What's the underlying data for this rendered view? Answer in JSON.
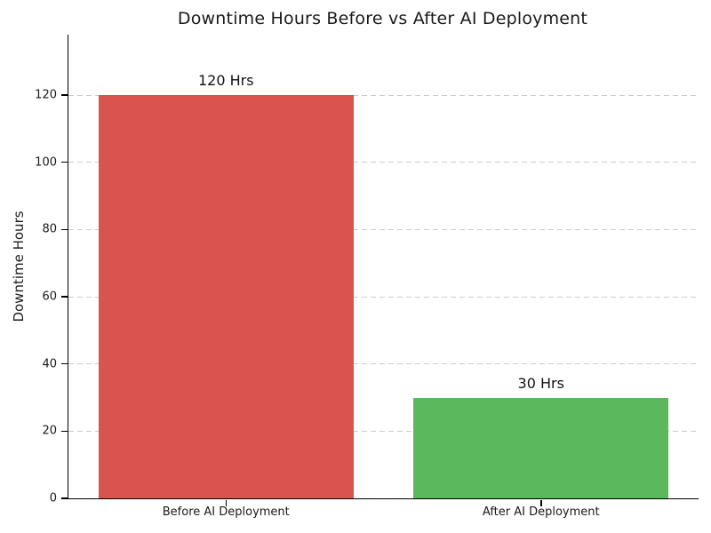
{
  "chart_data": {
    "type": "bar",
    "title": "Downtime Hours Before vs After AI Deployment",
    "xlabel": "",
    "ylabel": "Downtime Hours",
    "categories": [
      "Before AI Deployment",
      "After AI Deployment"
    ],
    "values": [
      120,
      30
    ],
    "value_labels": [
      "120 Hrs",
      "30 Hrs"
    ],
    "bar_colors": [
      "#d9534f",
      "#5cb85c"
    ],
    "ylim": [
      0,
      138
    ],
    "yticks": [
      0,
      20,
      40,
      60,
      80,
      100,
      120
    ],
    "grid": "horizontal-dashed",
    "legend": "none"
  },
  "colors": {
    "background": "#ffffff",
    "grid": "#cccccc",
    "axis": "#000000",
    "text": "#1a1a1a",
    "bar_before": "#d9534f",
    "bar_after": "#5cb85c"
  }
}
